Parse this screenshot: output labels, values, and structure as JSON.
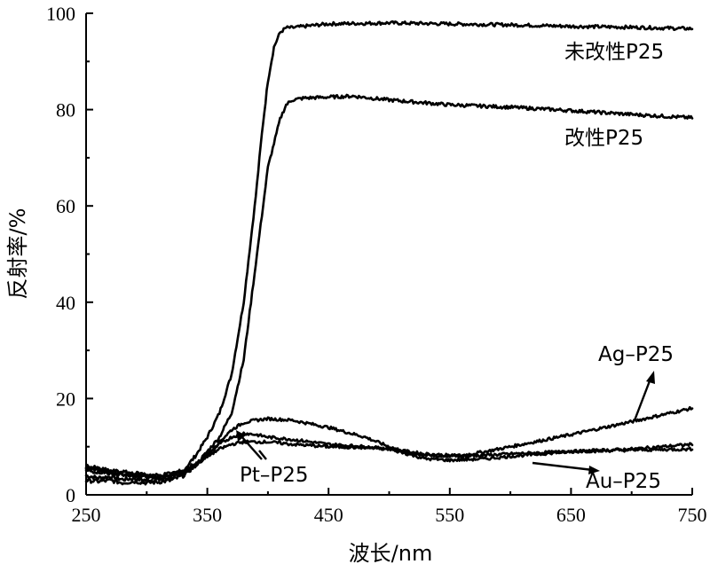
{
  "chart_data": {
    "type": "line",
    "xlabel": "波长/nm",
    "ylabel": "反射率/%",
    "xlim": [
      250,
      750
    ],
    "ylim": [
      0,
      100
    ],
    "x_ticks": [
      250,
      350,
      450,
      550,
      650,
      750
    ],
    "y_ticks": [
      0,
      20,
      40,
      60,
      80,
      100
    ],
    "grid": false,
    "series": [
      {
        "name": "未改性P25",
        "x": [
          250,
          260,
          270,
          280,
          290,
          300,
          310,
          320,
          330,
          340,
          350,
          360,
          370,
          380,
          390,
          395,
          400,
          405,
          410,
          415,
          420,
          430,
          450,
          500,
          550,
          600,
          650,
          700,
          750
        ],
        "y": [
          4,
          3.5,
          3.8,
          3.2,
          3.4,
          3.0,
          3.2,
          3.5,
          5,
          8,
          12,
          17,
          25,
          40,
          62,
          75,
          86,
          93,
          96,
          97,
          97,
          97.3,
          97.8,
          98,
          97.8,
          97.6,
          97.3,
          97.1,
          96.8
        ]
      },
      {
        "name": "改性P25",
        "x": [
          250,
          260,
          270,
          280,
          290,
          300,
          310,
          320,
          330,
          340,
          350,
          360,
          370,
          380,
          390,
          400,
          410,
          415,
          420,
          430,
          450,
          470,
          500,
          550,
          600,
          650,
          700,
          750
        ],
        "y": [
          3,
          2.8,
          3,
          2.5,
          2.8,
          2.5,
          2.7,
          3,
          4,
          6,
          9,
          12,
          17,
          28,
          48,
          68,
          78,
          81,
          82,
          82.4,
          82.6,
          82.8,
          82,
          81,
          80.5,
          79.8,
          79,
          78.3
        ]
      },
      {
        "name": "Ag–P25",
        "x": [
          250,
          270,
          290,
          310,
          330,
          340,
          350,
          360,
          370,
          380,
          390,
          400,
          420,
          450,
          480,
          500,
          520,
          540,
          560,
          580,
          600,
          650,
          700,
          750
        ],
        "y": [
          5,
          4.5,
          4,
          3.5,
          4.5,
          6,
          8,
          11,
          13.5,
          15,
          15.5,
          15.8,
          15.5,
          14,
          12,
          10,
          8.5,
          8,
          8.2,
          9,
          10,
          12.5,
          15.2,
          18
        ]
      },
      {
        "name": "Au–P25",
        "x": [
          250,
          270,
          290,
          310,
          330,
          340,
          350,
          360,
          370,
          380,
          390,
          400,
          420,
          450,
          480,
          500,
          530,
          560,
          600,
          650,
          700,
          750
        ],
        "y": [
          5.5,
          4.5,
          4,
          3.5,
          4.5,
          6,
          8.5,
          10.5,
          12,
          12.8,
          12.5,
          12,
          11.5,
          10.5,
          10,
          9.5,
          8.5,
          8,
          8.5,
          9,
          9.5,
          10.5
        ]
      },
      {
        "name": "Pt–P25",
        "x": [
          250,
          270,
          290,
          310,
          330,
          340,
          350,
          360,
          370,
          380,
          390,
          400,
          420,
          450,
          480,
          500,
          530,
          550,
          580,
          600,
          650,
          700,
          750
        ],
        "y": [
          6,
          5,
          4.5,
          4,
          5,
          6.5,
          8,
          9.5,
          10.5,
          11,
          11,
          11,
          10.5,
          10,
          9.8,
          9.5,
          7.5,
          7.2,
          7.5,
          8,
          9,
          9.3,
          9.5
        ]
      }
    ],
    "annotations": [
      {
        "text": "未改性P25",
        "series": "未改性P25"
      },
      {
        "text": "改性P25",
        "series": "改性P25"
      },
      {
        "text": "Ag–P25",
        "series": "Ag–P25"
      },
      {
        "text": "Au–P25",
        "series": "Au–P25"
      },
      {
        "text": "Pt–P25",
        "series": "Pt–P25"
      }
    ]
  }
}
